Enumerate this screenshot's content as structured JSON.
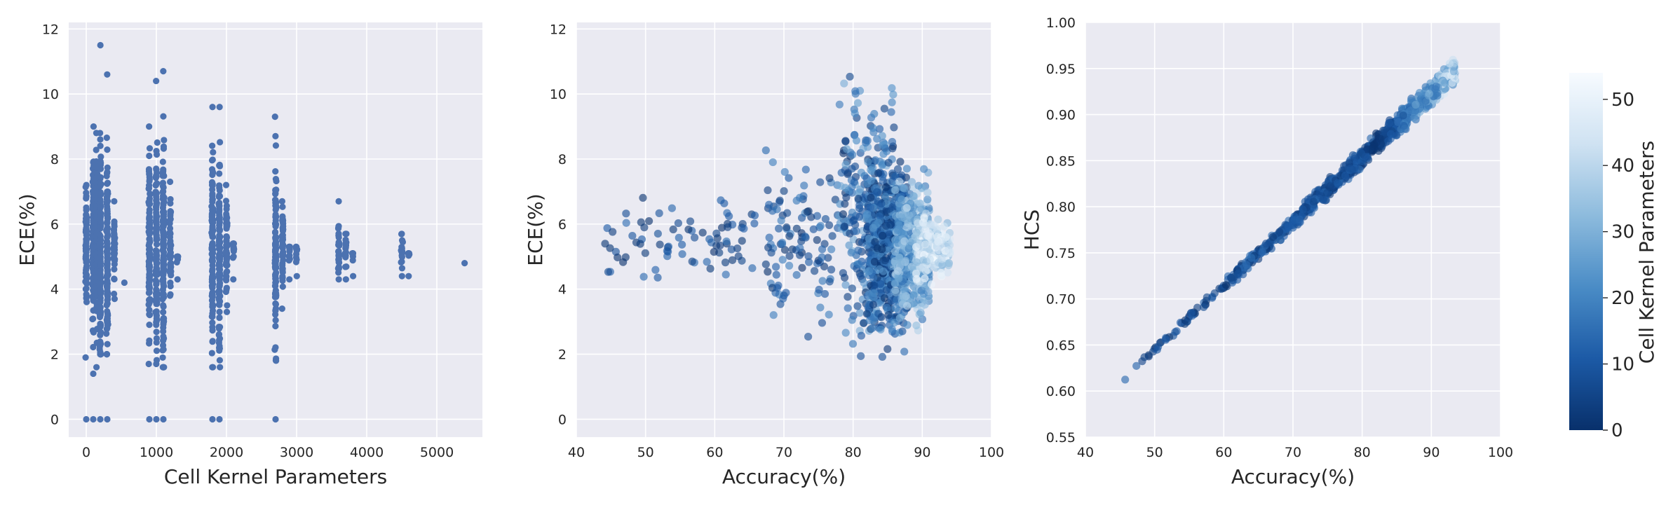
{
  "chart_data": [
    {
      "type": "scatter",
      "xlabel": "Cell Kernel Parameters",
      "ylabel": "ECE(%)",
      "xlim": [
        -250,
        5650
      ],
      "ylim": [
        -0.55,
        12.2
      ],
      "xticks": [
        0,
        1000,
        2000,
        3000,
        4000,
        5000
      ],
      "yticks": [
        0,
        2,
        4,
        6,
        8,
        10,
        12
      ],
      "grid": true,
      "point_color": "#4c72b0",
      "columns": [
        {
          "x": 0,
          "y_min": 1.9,
          "y_max": 7.2,
          "zeros": true
        },
        {
          "x": 100,
          "y_min": 1.4,
          "y_max": 9.0,
          "zeros": true
        },
        {
          "x": 150,
          "y_min": 1.6,
          "y_max": 8.8,
          "zeros": false
        },
        {
          "x": 200,
          "y_min": 2.0,
          "y_max": 11.5,
          "zeros": true
        },
        {
          "x": 300,
          "y_min": 2.0,
          "y_max": 10.6,
          "zeros": true
        },
        {
          "x": 400,
          "y_min": 3.7,
          "y_max": 6.7,
          "zeros": false
        },
        {
          "x": 550,
          "y_min": 4.2,
          "y_max": 4.2,
          "zeros": false
        },
        {
          "x": 900,
          "y_min": 1.7,
          "y_max": 9.0,
          "zeros": true
        },
        {
          "x": 1000,
          "y_min": 1.7,
          "y_max": 10.4,
          "zeros": true
        },
        {
          "x": 1100,
          "y_min": 1.6,
          "y_max": 10.7,
          "zeros": true
        },
        {
          "x": 1200,
          "y_min": 3.8,
          "y_max": 7.3,
          "zeros": false
        },
        {
          "x": 1300,
          "y_min": 4.3,
          "y_max": 5.0,
          "zeros": false
        },
        {
          "x": 1800,
          "y_min": 1.6,
          "y_max": 9.6,
          "zeros": true
        },
        {
          "x": 1900,
          "y_min": 1.6,
          "y_max": 9.6,
          "zeros": true
        },
        {
          "x": 2000,
          "y_min": 3.3,
          "y_max": 7.2,
          "zeros": false
        },
        {
          "x": 2100,
          "y_min": 4.3,
          "y_max": 5.4,
          "zeros": false
        },
        {
          "x": 2700,
          "y_min": 1.8,
          "y_max": 9.3,
          "zeros": true
        },
        {
          "x": 2800,
          "y_min": 3.4,
          "y_max": 6.7,
          "zeros": false
        },
        {
          "x": 2900,
          "y_min": 4.3,
          "y_max": 5.3,
          "zeros": false
        },
        {
          "x": 3000,
          "y_min": 4.4,
          "y_max": 5.3,
          "zeros": false
        },
        {
          "x": 3600,
          "y_min": 4.3,
          "y_max": 6.7,
          "zeros": false
        },
        {
          "x": 3700,
          "y_min": 4.3,
          "y_max": 5.7,
          "zeros": false
        },
        {
          "x": 3800,
          "y_min": 4.4,
          "y_max": 5.1,
          "zeros": false
        },
        {
          "x": 4500,
          "y_min": 4.4,
          "y_max": 5.7,
          "zeros": false
        },
        {
          "x": 4600,
          "y_min": 4.4,
          "y_max": 5.1,
          "zeros": false
        },
        {
          "x": 5400,
          "y_min": 4.8,
          "y_max": 4.8,
          "zeros": false
        }
      ]
    },
    {
      "type": "scatter",
      "xlabel": "Accuracy(%)",
      "ylabel": "ECE(%)",
      "xlim": [
        40,
        100
      ],
      "ylim": [
        -0.55,
        12.2
      ],
      "xticks": [
        40,
        50,
        60,
        70,
        80,
        90,
        100
      ],
      "yticks": [
        0,
        2,
        4,
        6,
        8,
        10,
        12
      ],
      "grid": true,
      "color_by": "Cell Kernel Parameters",
      "clusters": [
        {
          "x": [
            44,
            66
          ],
          "y": [
            3.9,
            7.2
          ],
          "c": [
            0,
            15
          ],
          "n": 80
        },
        {
          "x": [
            67,
            78
          ],
          "y": [
            1.9,
            8.7
          ],
          "c": [
            0,
            20
          ],
          "n": 110
        },
        {
          "x": [
            78,
            86
          ],
          "y": [
            1.4,
            11.5
          ],
          "c": [
            0,
            30
          ],
          "n": 260
        },
        {
          "x": [
            82,
            88
          ],
          "y": [
            1.6,
            9.0
          ],
          "c": [
            0,
            25
          ],
          "n": 500
        },
        {
          "x": [
            86,
            91
          ],
          "y": [
            2.5,
            8.0
          ],
          "c": [
            15,
            40
          ],
          "n": 450
        },
        {
          "x": [
            89,
            94
          ],
          "y": [
            4.0,
            6.5
          ],
          "c": [
            30,
            54
          ],
          "n": 260
        }
      ]
    },
    {
      "type": "scatter",
      "xlabel": "Accuracy(%)",
      "ylabel": "HCS",
      "xlim": [
        40,
        100
      ],
      "ylim": [
        0.55,
        1.0
      ],
      "xticks": [
        40,
        50,
        60,
        70,
        80,
        90,
        100
      ],
      "yticks": [
        0.55,
        0.6,
        0.65,
        0.7,
        0.75,
        0.8,
        0.85,
        0.9,
        0.95,
        1.0
      ],
      "grid": true,
      "color_by": "Cell Kernel Parameters",
      "relation": {
        "x_start": 45,
        "y_start": 0.61,
        "x_end": 93.5,
        "y_end": 0.948
      }
    }
  ],
  "colorbar": {
    "label": "Cell Kernel Parameters",
    "min": 0,
    "max": 54,
    "ticks": [
      0,
      10,
      20,
      30,
      40,
      50
    ],
    "colors": [
      "#08306b",
      "#1c5aa6",
      "#4a8cc6",
      "#8dbbdd",
      "#cfe2f2",
      "#f7fbff"
    ]
  },
  "style": {
    "axes_background": "#eaeaf2",
    "grid_color": "#ffffff"
  }
}
